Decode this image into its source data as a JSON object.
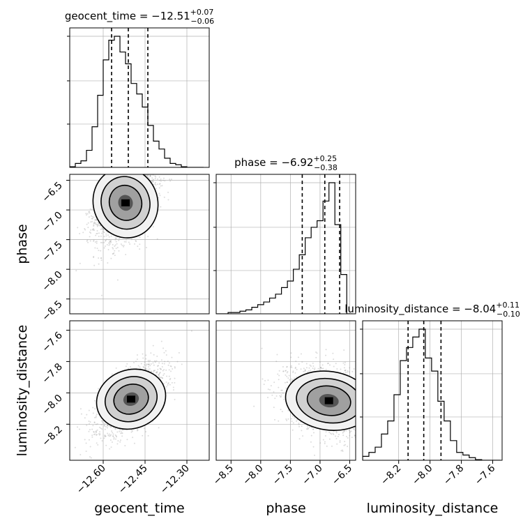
{
  "chart_data": {
    "type": "corner",
    "parameters": [
      "geocent_time",
      "phase",
      "luminosity_distance"
    ],
    "titles": [
      {
        "name": "geocent_time",
        "median": "−12.51",
        "plus": "+0.07",
        "minus": "−0.06"
      },
      {
        "name": "phase",
        "median": "−6.92",
        "plus": "+0.25",
        "minus": "−0.38"
      },
      {
        "name": "luminosity_distance",
        "median": "−8.04",
        "plus": "+0.11",
        "minus": "−0.10"
      }
    ],
    "ranges": {
      "geocent_time": [
        -12.72,
        -12.22
      ],
      "phase": [
        -8.75,
        -6.4
      ],
      "luminosity_distance": [
        -8.43,
        -7.54
      ]
    },
    "ticks": {
      "geocent_time": [
        {
          "v": -12.6,
          "label": "−12.60"
        },
        {
          "v": -12.45,
          "label": "−12.45"
        },
        {
          "v": -12.3,
          "label": "−12.30"
        }
      ],
      "phase": [
        {
          "v": -8.5,
          "label": "−8.5"
        },
        {
          "v": -8.0,
          "label": "−8.0"
        },
        {
          "v": -7.5,
          "label": "−7.5"
        },
        {
          "v": -7.0,
          "label": "−7.0"
        },
        {
          "v": -6.5,
          "label": "−6.5"
        }
      ],
      "luminosity_distance": [
        {
          "v": -8.2,
          "label": "−8.2"
        },
        {
          "v": -8.0,
          "label": "−8.0"
        },
        {
          "v": -7.8,
          "label": "−7.8"
        },
        {
          "v": -7.6,
          "label": "−7.6"
        }
      ]
    },
    "quantiles": {
      "geocent_time": [
        -12.57,
        -12.51,
        -12.44
      ],
      "phase": [
        -7.3,
        -6.92,
        -6.67
      ],
      "luminosity_distance": [
        -8.14,
        -8.04,
        -7.93
      ]
    },
    "histograms": {
      "geocent_time": {
        "edges": [
          -12.72,
          -12.7,
          -12.68,
          -12.66,
          -12.64,
          -12.62,
          -12.6,
          -12.58,
          -12.56,
          -12.54,
          -12.52,
          -12.5,
          -12.48,
          -12.46,
          -12.44,
          -12.42,
          -12.4,
          -12.38,
          -12.36,
          -12.34,
          -12.32,
          -12.3,
          -12.28,
          -12.26,
          -12.24
        ],
        "counts": [
          0.005,
          0.03,
          0.05,
          0.13,
          0.31,
          0.55,
          0.82,
          0.97,
          1.0,
          0.88,
          0.79,
          0.64,
          0.56,
          0.46,
          0.32,
          0.2,
          0.14,
          0.07,
          0.03,
          0.02,
          0.005,
          0.0,
          0.0,
          0.0
        ]
      },
      "phase": {
        "edges": [
          -8.75,
          -8.65,
          -8.55,
          -8.45,
          -8.35,
          -8.25,
          -8.15,
          -8.05,
          -7.95,
          -7.85,
          -7.75,
          -7.65,
          -7.55,
          -7.45,
          -7.35,
          -7.25,
          -7.15,
          -7.05,
          -6.95,
          -6.85,
          -6.75,
          -6.65,
          -6.55,
          -6.45
        ],
        "counts": [
          0.0,
          0.0,
          0.01,
          0.01,
          0.02,
          0.03,
          0.05,
          0.07,
          0.09,
          0.12,
          0.15,
          0.2,
          0.25,
          0.34,
          0.45,
          0.58,
          0.66,
          0.71,
          0.86,
          1.0,
          0.68,
          0.3,
          0.0
        ]
      },
      "luminosity_distance": {
        "edges": [
          -8.43,
          -8.39,
          -8.35,
          -8.31,
          -8.27,
          -8.23,
          -8.19,
          -8.15,
          -8.11,
          -8.07,
          -8.03,
          -7.99,
          -7.95,
          -7.91,
          -7.87,
          -7.83,
          -7.79,
          -7.75,
          -7.71,
          -7.67,
          -7.63,
          -7.59,
          -7.55
        ],
        "counts": [
          0.03,
          0.06,
          0.1,
          0.2,
          0.3,
          0.5,
          0.76,
          0.86,
          0.94,
          1.0,
          0.78,
          0.68,
          0.45,
          0.3,
          0.15,
          0.06,
          0.04,
          0.02,
          0.005,
          0.0,
          0.0,
          0.0
        ]
      }
    },
    "pairs": [
      {
        "x": "geocent_time",
        "y": "phase",
        "center": [
          -12.52,
          -6.88
        ],
        "sd": [
          0.055,
          0.35
        ],
        "rho": 0.42,
        "skew_y": -1,
        "n": 1800
      },
      {
        "x": "geocent_time",
        "y": "luminosity_distance",
        "center": [
          -12.5,
          -8.04
        ],
        "sd": [
          0.06,
          0.11
        ],
        "rho": 0.62,
        "skew_y": 0,
        "n": 1800
      },
      {
        "x": "phase",
        "y": "luminosity_distance",
        "center": [
          -6.85,
          -8.05
        ],
        "sd": [
          0.35,
          0.11
        ],
        "rho": -0.3,
        "skew_y": 0,
        "n": 1800
      }
    ],
    "colors": {
      "line": "#000000",
      "points": "#9a9a9a",
      "grid": "#b0b0b0"
    },
    "grid": true
  }
}
